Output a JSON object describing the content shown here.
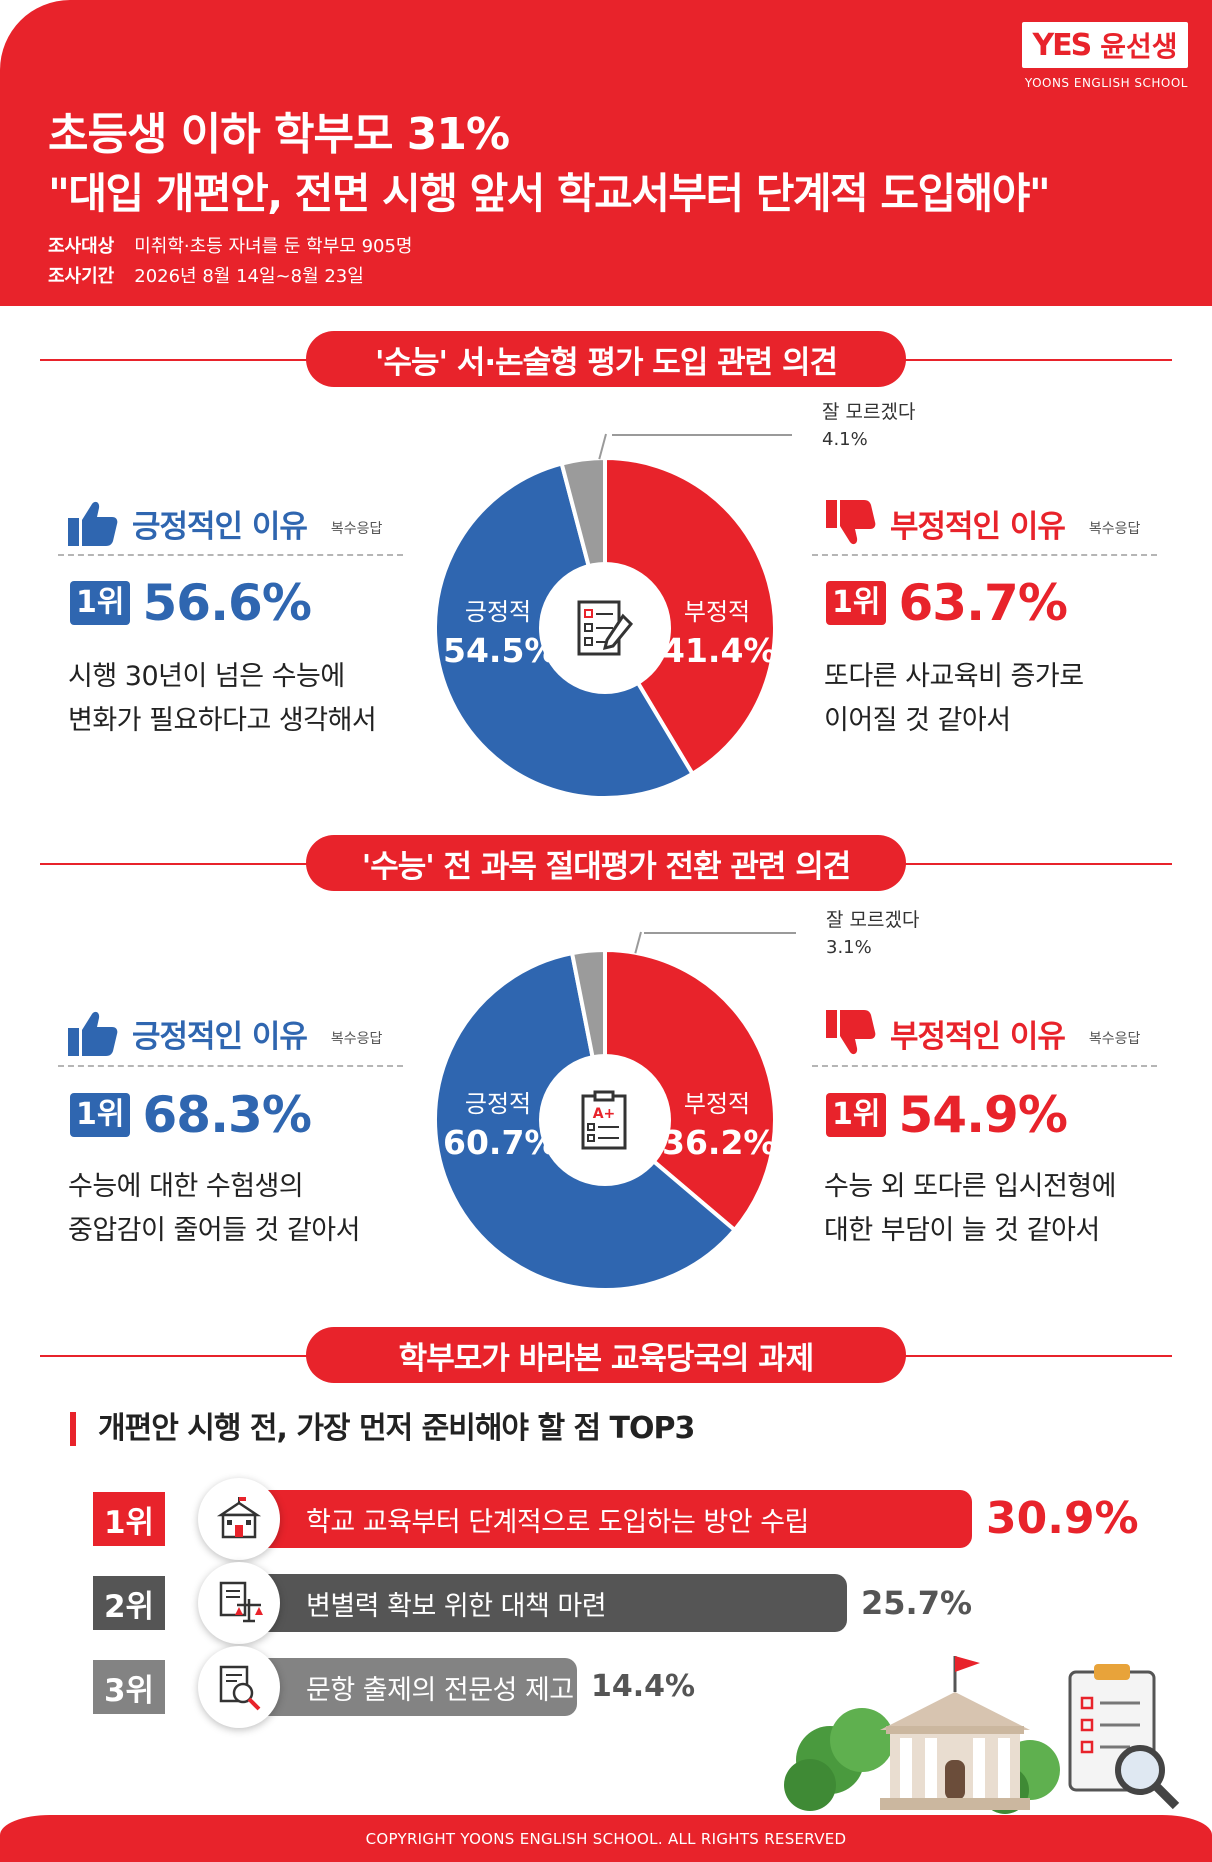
{
  "colors": {
    "red": "#e8232b",
    "blue": "#2f66b0",
    "gray": "#9b9b9b",
    "dark": "#555555",
    "mid": "#838383"
  },
  "header": {
    "logo_mark": "YES",
    "logo_name": "윤선생",
    "logo_sub": "YOONS ENGLISH SCHOOL",
    "title_line1": "초등생 이하 학부모 31%",
    "title_line2": "\"대입 개편안, 전면 시행 앞서 학교서부터 단계적 도입해야\"",
    "survey_target_label": "조사대상",
    "survey_target": "미취학·초등 자녀를 둔 학부모 905명",
    "survey_period_label": "조사기간",
    "survey_period": "2026년 8월 14일~8월 23일"
  },
  "section1": {
    "title": "'수능' 서·논술형 평가 도입 관련 의견",
    "positive_head": "긍정적인 이유",
    "negative_head": "부정적인 이유",
    "multi_label": "복수응답",
    "positive_rank": "1위",
    "positive_pct": "56.6%",
    "positive_text1": "시행 30년이 넘은 수능에",
    "positive_text2": "변화가 필요하다고 생각해서",
    "negative_rank": "1위",
    "negative_pct": "63.7%",
    "negative_text1": "또다른 사교육비 증가로",
    "negative_text2": "이어질 것 같아서",
    "pos_label": "긍정적",
    "pos_value_text": "54.5%",
    "neg_label": "부정적",
    "neg_value_text": "41.4%",
    "dk_label": "잘 모르겠다",
    "dk_value_text": "4.1%"
  },
  "section2": {
    "title": "'수능' 전 과목 절대평가 전환 관련 의견",
    "positive_head": "긍정적인 이유",
    "negative_head": "부정적인 이유",
    "multi_label": "복수응답",
    "positive_rank": "1위",
    "positive_pct": "68.3%",
    "positive_text1": "수능에 대한 수험생의",
    "positive_text2": "중압감이 줄어들 것 같아서",
    "negative_rank": "1위",
    "negative_pct": "54.9%",
    "negative_text1": "수능 외 또다른 입시전형에",
    "negative_text2": "대한 부담이 늘 것 같아서",
    "pos_label": "긍정적",
    "pos_value_text": "60.7%",
    "neg_label": "부정적",
    "neg_value_text": "36.2%",
    "dk_label": "잘 모르겠다",
    "dk_value_text": "3.1%"
  },
  "section3": {
    "title": "학부모가 바라본 교육당국의 과제",
    "top3_title": "개편안 시행 전, 가장 먼저 준비해야 할 점 TOP3",
    "items": [
      {
        "rank": "1위",
        "label": "학교 교육부터 단계적으로 도입하는 방안 수립",
        "value_text": "30.9%"
      },
      {
        "rank": "2위",
        "label": "변별력 확보 위한 대책 마련",
        "value_text": "25.7%"
      },
      {
        "rank": "3위",
        "label": "문항 출제의 전문성 제고",
        "value_text": "14.4%"
      }
    ]
  },
  "footer": {
    "copyright": "COPYRIGHT YOONS ENGLISH SCHOOL. ALL RIGHTS RESERVED"
  },
  "chart_data": [
    {
      "type": "pie",
      "title": "'수능' 서·논술형 평가 도입 관련 의견",
      "categories": [
        "부정적",
        "긍정적",
        "잘 모르겠다"
      ],
      "values": [
        41.4,
        54.5,
        4.1
      ],
      "colors": [
        "#e8232b",
        "#2f66b0",
        "#9b9b9b"
      ]
    },
    {
      "type": "pie",
      "title": "'수능' 전 과목 절대평가 전환 관련 의견",
      "categories": [
        "부정적",
        "긍정적",
        "잘 모르겠다"
      ],
      "values": [
        36.2,
        60.7,
        3.1
      ],
      "colors": [
        "#e8232b",
        "#2f66b0",
        "#9b9b9b"
      ]
    },
    {
      "type": "bar",
      "title": "개편안 시행 전, 가장 먼저 준비해야 할 점 TOP3",
      "categories": [
        "학교 교육부터 단계적으로 도입하는 방안 수립",
        "변별력 확보 위한 대책 마련",
        "문항 출제의 전문성 제고"
      ],
      "values": [
        30.9,
        25.7,
        14.4
      ]
    }
  ]
}
